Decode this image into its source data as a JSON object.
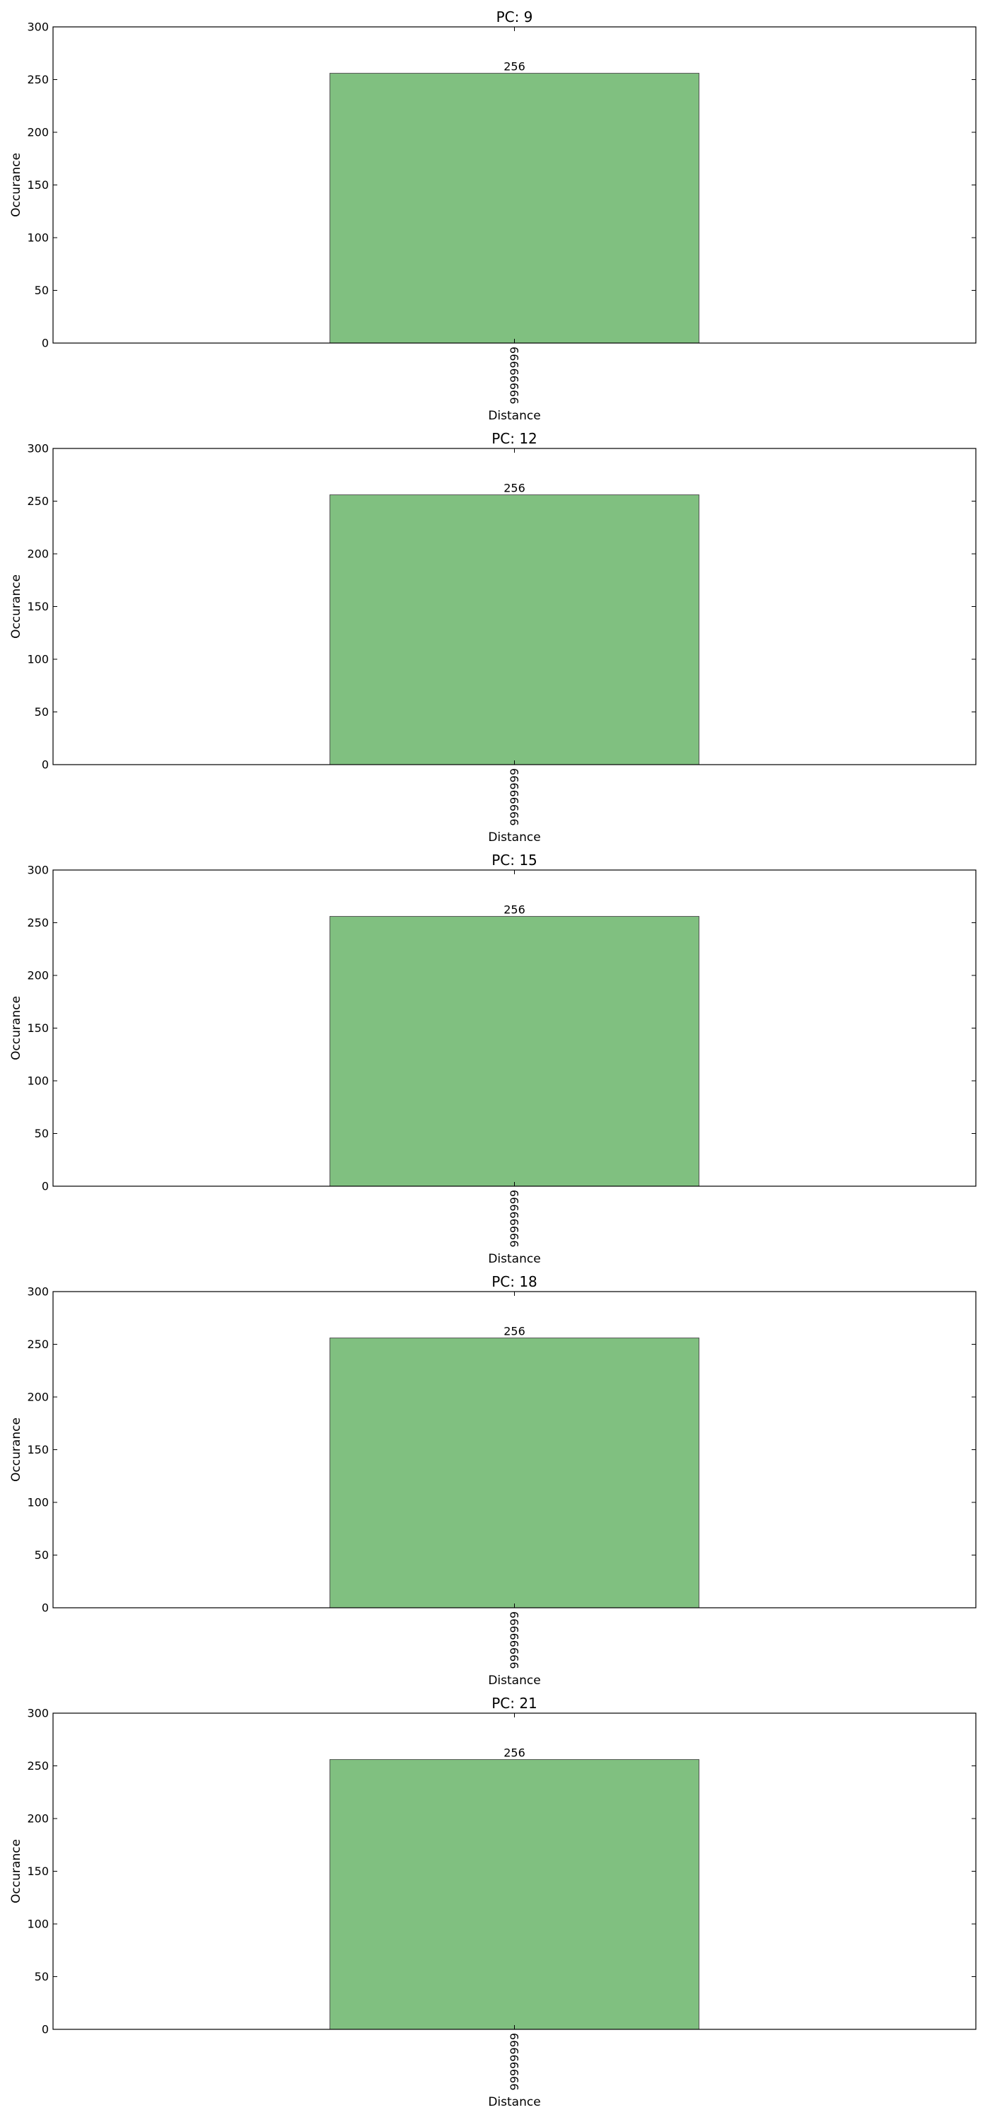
{
  "chart_data": [
    {
      "type": "bar",
      "title": "PC: 9",
      "xlabel": "Distance",
      "ylabel": "Occurance",
      "categories": [
        "99999999"
      ],
      "values": [
        256
      ],
      "data_labels": [
        "256"
      ],
      "ylim": [
        0,
        300
      ],
      "yticks": [
        0,
        50,
        100,
        150,
        200,
        250,
        300
      ],
      "grid": false,
      "legend": "none",
      "bar_color": "#80c080"
    },
    {
      "type": "bar",
      "title": "PC: 12",
      "xlabel": "Distance",
      "ylabel": "Occurance",
      "categories": [
        "99999999"
      ],
      "values": [
        256
      ],
      "data_labels": [
        "256"
      ],
      "ylim": [
        0,
        300
      ],
      "yticks": [
        0,
        50,
        100,
        150,
        200,
        250,
        300
      ],
      "grid": false,
      "legend": "none",
      "bar_color": "#80c080"
    },
    {
      "type": "bar",
      "title": "PC: 15",
      "xlabel": "Distance",
      "ylabel": "Occurance",
      "categories": [
        "99999999"
      ],
      "values": [
        256
      ],
      "data_labels": [
        "256"
      ],
      "ylim": [
        0,
        300
      ],
      "yticks": [
        0,
        50,
        100,
        150,
        200,
        250,
        300
      ],
      "grid": false,
      "legend": "none",
      "bar_color": "#80c080"
    },
    {
      "type": "bar",
      "title": "PC: 18",
      "xlabel": "Distance",
      "ylabel": "Occurance",
      "categories": [
        "99999999"
      ],
      "values": [
        256
      ],
      "data_labels": [
        "256"
      ],
      "ylim": [
        0,
        300
      ],
      "yticks": [
        0,
        50,
        100,
        150,
        200,
        250,
        300
      ],
      "grid": false,
      "legend": "none",
      "bar_color": "#80c080"
    },
    {
      "type": "bar",
      "title": "PC: 21",
      "xlabel": "Distance",
      "ylabel": "Occurance",
      "categories": [
        "99999999"
      ],
      "values": [
        256
      ],
      "data_labels": [
        "256"
      ],
      "ylim": [
        0,
        300
      ],
      "yticks": [
        0,
        50,
        100,
        150,
        200,
        250,
        300
      ],
      "grid": false,
      "legend": "none",
      "bar_color": "#80c080"
    }
  ]
}
